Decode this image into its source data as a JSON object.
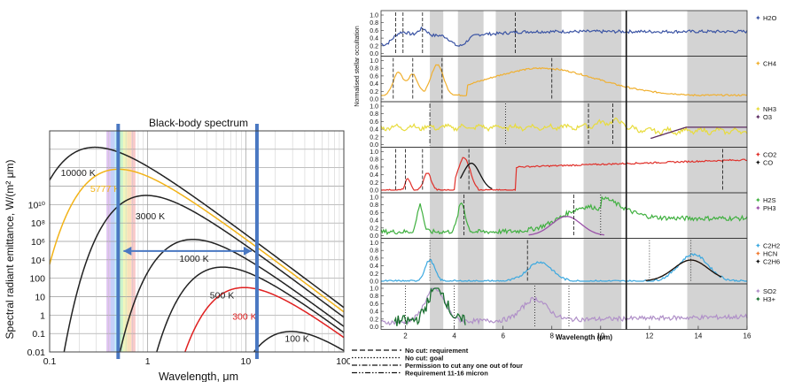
{
  "chart_data": [
    {
      "type": "line",
      "title": "Black-body spectrum",
      "xlabel": "Wavelength, μm",
      "ylabel": "Spectral radiant emittance, W/(m² μm)",
      "xscale": "log",
      "yscale": "log",
      "xlim": [
        0.1,
        100
      ],
      "ylim": [
        0.01,
        10000000000
      ],
      "grid": true,
      "x_ticks": [
        "0.1",
        "1",
        "10",
        "100"
      ],
      "y_ticks": [
        "0.01",
        "0.1",
        "1",
        "10",
        "100",
        "10⁴",
        "10⁶",
        "10⁸",
        "10¹⁰"
      ],
      "series": [
        {
          "name": "10000 K",
          "temperature": 10000,
          "color": "#222222"
        },
        {
          "name": "5777 K",
          "temperature": 5777,
          "color": "#f2b318"
        },
        {
          "name": "3000 K",
          "temperature": 3000,
          "color": "#222222"
        },
        {
          "name": "1000 K",
          "temperature": 1000,
          "color": "#222222"
        },
        {
          "name": "500 K",
          "temperature": 500,
          "color": "#222222"
        },
        {
          "name": "300 K",
          "temperature": 300,
          "color": "#e02020"
        },
        {
          "name": "100 K",
          "temperature": 100,
          "color": "#222222"
        }
      ],
      "visible_band_um": [
        0.38,
        0.75
      ],
      "vertical_markers_um": [
        0.5,
        13
      ],
      "arrow_um": [
        0.5,
        13
      ],
      "marker_color": "#4a78c2"
    },
    {
      "type": "line",
      "xlabel": "Wavelength (μm)",
      "ylabel": "Normalised stellar occultation",
      "xlim": [
        1,
        16
      ],
      "x_ticks": [
        "2",
        "4",
        "6",
        "8",
        "10",
        "12",
        "14",
        "16"
      ],
      "y_ticks": [
        "0.0",
        "0.2",
        "0.4",
        "0.6",
        "0.8",
        "1.0"
      ],
      "gray_bands_um": [
        [
          3.0,
          3.55
        ],
        [
          4.15,
          5.2
        ],
        [
          5.7,
          8.4
        ],
        [
          9.3,
          10.85
        ],
        [
          13.55,
          16.0
        ]
      ],
      "panel_divider_um": 11.05,
      "panels": [
        {
          "species": [
            {
              "name": "H2O",
              "color": "#3b54a4"
            }
          ]
        },
        {
          "species": [
            {
              "name": "CH4",
              "color": "#f0b030"
            }
          ]
        },
        {
          "species": [
            {
              "name": "NH3",
              "color": "#e8dc3c"
            },
            {
              "name": "O3",
              "color": "#5a2a60"
            }
          ]
        },
        {
          "species": [
            {
              "name": "CO2",
              "color": "#e0302a"
            },
            {
              "name": "CO",
              "color": "#111111"
            }
          ]
        },
        {
          "species": [
            {
              "name": "H2S",
              "color": "#40b040"
            },
            {
              "name": "PH3",
              "color": "#9a50a8"
            }
          ]
        },
        {
          "species": [
            {
              "name": "C2H2",
              "color": "#3aa8e0"
            },
            {
              "name": "HCN",
              "color": "#f07a30"
            },
            {
              "name": "C2H6",
              "color": "#111111"
            }
          ]
        },
        {
          "species": [
            {
              "name": "SO2",
              "color": "#b090c8"
            },
            {
              "name": "H3+",
              "color": "#1a7030"
            }
          ]
        }
      ],
      "line_legend": [
        {
          "label": "No cut: requirement",
          "style": "dashed"
        },
        {
          "label": "No cut: goal",
          "style": "dotted"
        },
        {
          "label": "Permission to cut any one out of four",
          "style": "dashdot"
        },
        {
          "label": "Requirement 11-16 micron",
          "style": "dashdotdot"
        }
      ]
    }
  ]
}
